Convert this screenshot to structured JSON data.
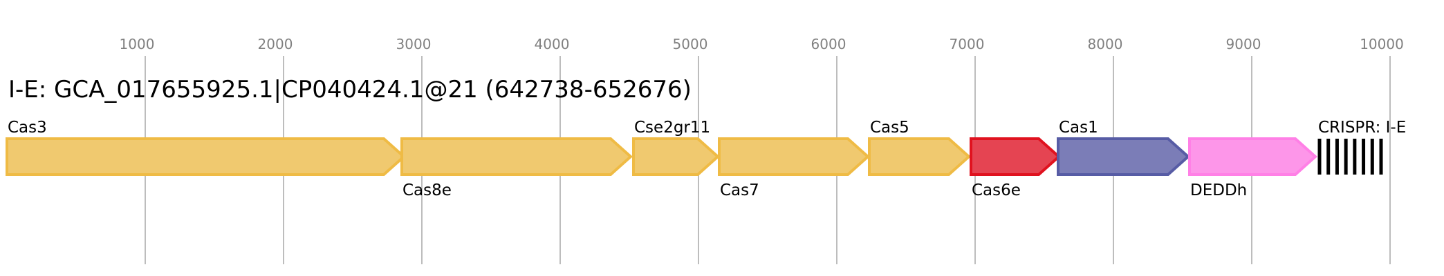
{
  "title": "I-E: GCA_017655925.1|CP040424.1@21 (642738-652676)",
  "axis": {
    "ticks": [
      1000,
      2000,
      3000,
      4000,
      5000,
      6000,
      7000,
      8000,
      9000,
      10000
    ],
    "range": [
      0,
      10400
    ]
  },
  "genes": [
    {
      "name": "Cas3",
      "start": 0,
      "end": 2870,
      "strand": "+",
      "fill": "#f0c96f",
      "stroke": "#efbb45",
      "label_pos": "above"
    },
    {
      "name": "Cas8e",
      "start": 2855,
      "end": 4510,
      "strand": "+",
      "fill": "#f0c96f",
      "stroke": "#efbb45",
      "label_pos": "below"
    },
    {
      "name": "Cse2gr11",
      "start": 4530,
      "end": 5140,
      "strand": "+",
      "fill": "#f0c96f",
      "stroke": "#efbb45",
      "label_pos": "above"
    },
    {
      "name": "Cas7",
      "start": 5150,
      "end": 6225,
      "strand": "+",
      "fill": "#f0c96f",
      "stroke": "#efbb45",
      "label_pos": "below"
    },
    {
      "name": "Cas5",
      "start": 6235,
      "end": 6955,
      "strand": "+",
      "fill": "#f0c96f",
      "stroke": "#efbb45",
      "label_pos": "above"
    },
    {
      "name": "Cas6e",
      "start": 6970,
      "end": 7605,
      "strand": "+",
      "fill": "#e54452",
      "stroke": "#e0121f",
      "label_pos": "below"
    },
    {
      "name": "Cas1",
      "start": 7600,
      "end": 8540,
      "strand": "+",
      "fill": "#7b7db7",
      "stroke": "#575ca5",
      "label_pos": "above"
    },
    {
      "name": "DEDDh",
      "start": 8550,
      "end": 9460,
      "strand": "+",
      "fill": "#fd96e9",
      "stroke": "#ff80e6",
      "label_pos": "below"
    }
  ],
  "crispr": {
    "name": "CRISPR: I-E",
    "start": 9490,
    "end": 9935,
    "repeats": 8,
    "color": "#000000",
    "label_pos": "above"
  }
}
